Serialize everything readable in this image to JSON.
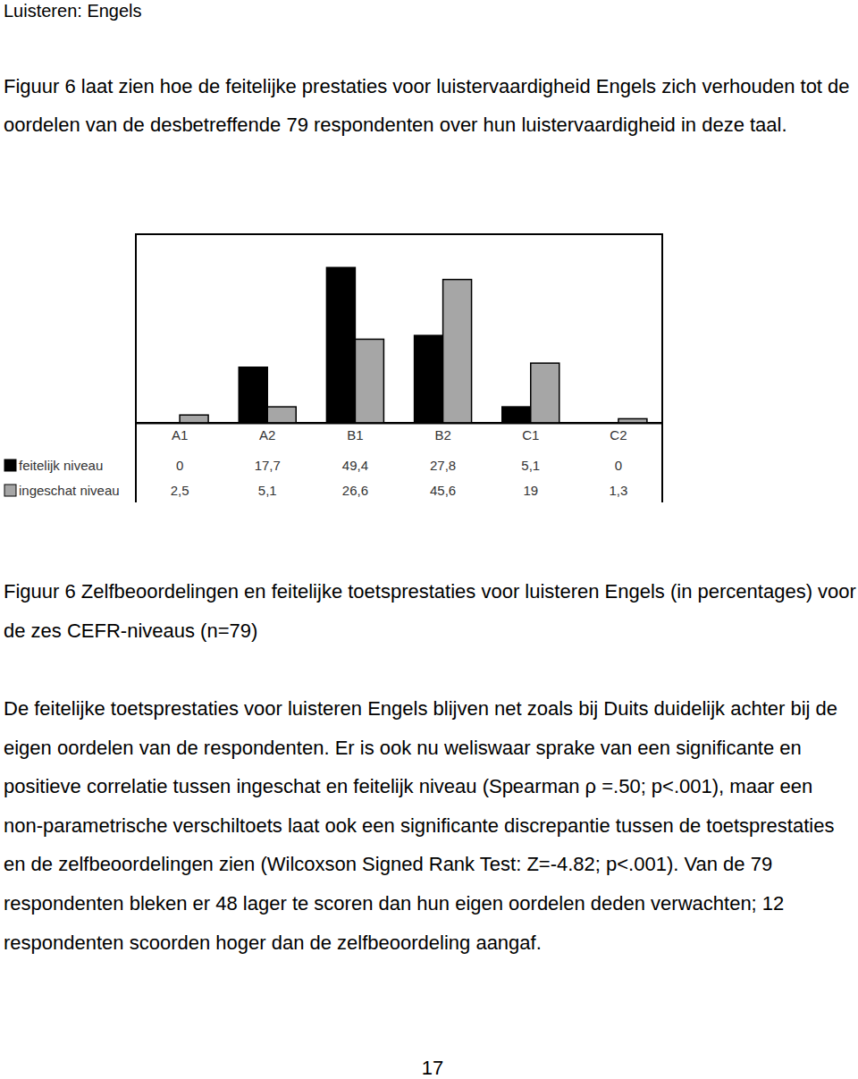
{
  "heading": "Luisteren: Engels",
  "intro": "Figuur 6 laat zien hoe de feitelijke prestaties voor luistervaardigheid Engels zich verhouden tot de oordelen van de desbetreffende 79 respondenten over hun luistervaardigheid in deze taal.",
  "chart_data": {
    "type": "bar",
    "categories": [
      "A1",
      "A2",
      "B1",
      "B2",
      "C1",
      "C2"
    ],
    "series": [
      {
        "name": "feitelijk niveau",
        "color": "#000000",
        "values": [
          0,
          17.7,
          49.4,
          27.8,
          5.1,
          0
        ],
        "value_labels": [
          "0",
          "17,7",
          "49,4",
          "27,8",
          "5,1",
          "0"
        ]
      },
      {
        "name": "ingeschat niveau",
        "color": "#a6a6a6",
        "values": [
          2.5,
          5.1,
          26.6,
          45.6,
          19,
          1.3
        ],
        "value_labels": [
          "2,5",
          "5,1",
          "26,6",
          "45,6",
          "19",
          "1,3"
        ]
      }
    ],
    "ylim": [
      0,
      60
    ],
    "yticks": [],
    "grid": false,
    "data_labels": true,
    "tick_labels": "x"
  },
  "caption": "Figuur 6 Zelfbeoordelingen en feitelijke toetsprestaties voor luisteren Engels (in percentages) voor de zes CEFR-niveaus (n=79)",
  "body": "De feitelijke toetsprestaties voor luisteren Engels blijven net zoals bij Duits duidelijk achter bij de eigen oordelen van de respondenten. Er is ook nu weliswaar sprake van een significante en positieve correlatie tussen ingeschat en feitelijk niveau (Spearman ρ =.50; p<.001), maar een non-parametrische verschiltoets laat ook een significante discrepantie tussen de toetsprestaties en de zelfbeoordelingen zien (Wilcoxson Signed Rank Test: Z=-4.82; p<.001). Van de 79 respondenten bleken er 48 lager te scoren dan hun eigen oordelen deden verwachten; 12 respondenten scoorden hoger dan de zelfbeoordeling aangaf.",
  "page_number": "17"
}
